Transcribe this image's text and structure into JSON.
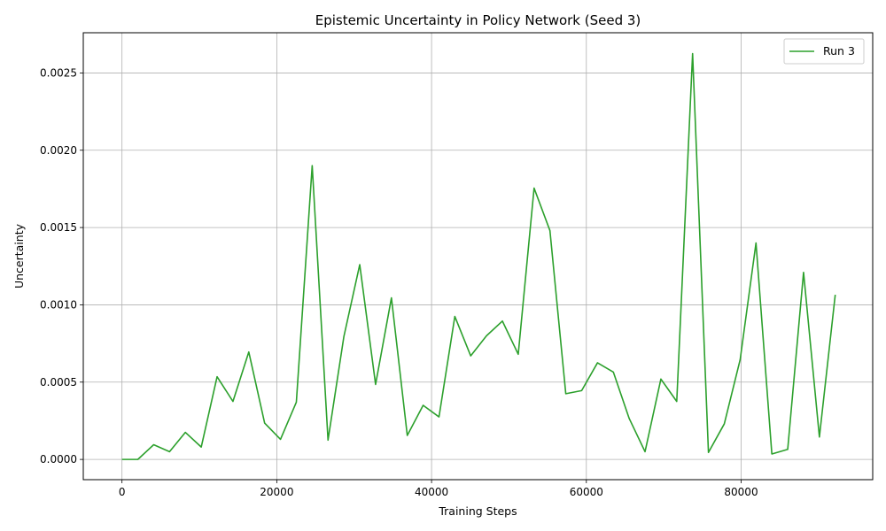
{
  "chart_data": {
    "type": "line",
    "title": "Epistemic Uncertainty in Policy Network (Seed 3)",
    "xlabel": "Training Steps",
    "ylabel": "Uncertainty",
    "xlim": [
      -5000,
      97000
    ],
    "ylim": [
      -0.000131,
      0.00276
    ],
    "xticks": [
      0,
      20000,
      40000,
      60000,
      80000
    ],
    "xtick_labels": [
      "0",
      "20000",
      "40000",
      "60000",
      "80000"
    ],
    "yticks": [
      0.0,
      0.0005,
      0.001,
      0.0015,
      0.002,
      0.0025
    ],
    "ytick_labels": [
      "0.0000",
      "0.0005",
      "0.0010",
      "0.0015",
      "0.0020",
      "0.0025"
    ],
    "grid": true,
    "legend": {
      "placement": "top-right"
    },
    "series": [
      {
        "name": "Run 3",
        "color": "#2ca02c",
        "x": [
          0,
          2048,
          4096,
          6144,
          8192,
          10240,
          12288,
          14336,
          16384,
          18432,
          20480,
          22528,
          24576,
          26624,
          28672,
          30720,
          32768,
          34816,
          36864,
          38912,
          40960,
          43008,
          45056,
          47104,
          49152,
          51200,
          53248,
          55296,
          57344,
          59392,
          61440,
          63488,
          65536,
          67584,
          69632,
          71680,
          73728,
          75776,
          77824,
          79872,
          81920,
          83968,
          86016,
          88064,
          90112,
          92160
        ],
        "values": [
          0.0,
          0.0,
          9.5e-05,
          5e-05,
          0.000175,
          8e-05,
          0.000535,
          0.000375,
          0.000695,
          0.000235,
          0.00013,
          0.00037,
          0.0019,
          0.000125,
          0.000795,
          0.00126,
          0.000485,
          0.001045,
          0.000155,
          0.00035,
          0.000275,
          0.000925,
          0.00067,
          0.0008,
          0.000895,
          0.00068,
          0.001755,
          0.00148,
          0.000425,
          0.000445,
          0.000625,
          0.000565,
          0.000265,
          5e-05,
          0.00052,
          0.000375,
          0.002625,
          4.5e-05,
          0.00023,
          0.000645,
          0.0014,
          3.5e-05,
          6.5e-05,
          0.00121,
          0.000145,
          0.001065
        ]
      }
    ]
  }
}
